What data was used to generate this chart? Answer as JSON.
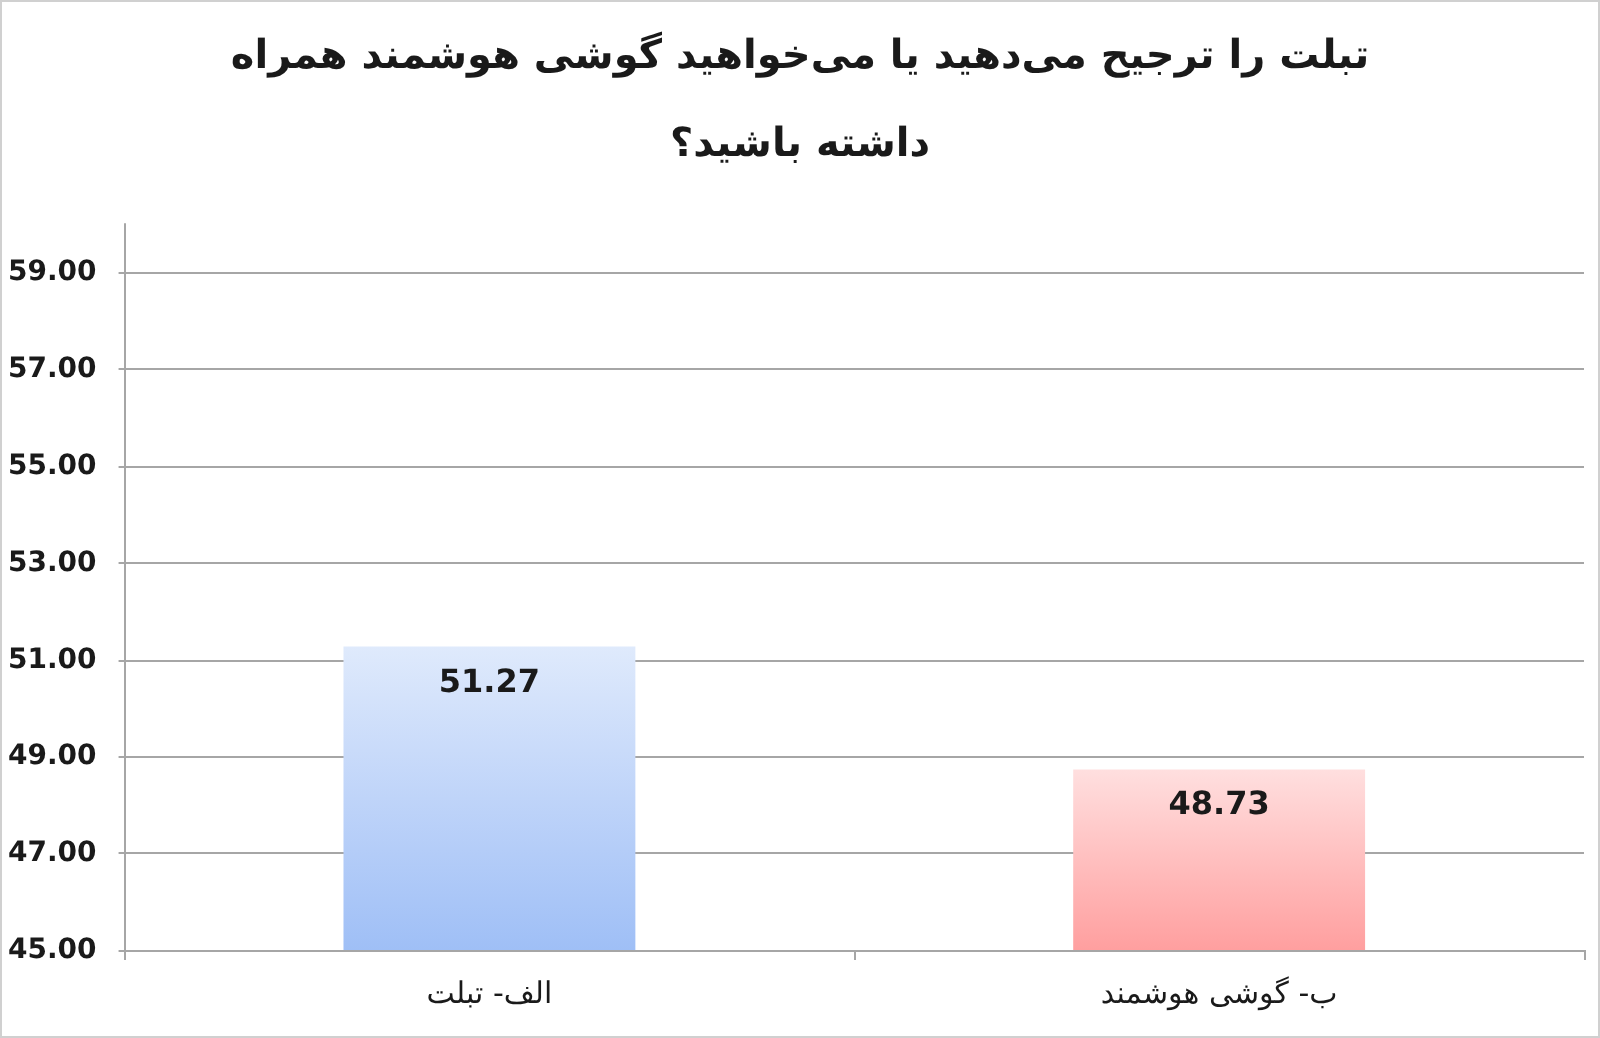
{
  "chart_data": {
    "type": "bar",
    "title": "تبلت را ترجیح می‌دهید یا می‌خواهید گوشی هوشمند همراه داشته باشید؟",
    "categories": [
      "الف- تبلت",
      "ب- گوشی هوشمند"
    ],
    "values": [
      51.27,
      48.73
    ],
    "colors": [
      "#bfd4f9",
      "#ffbfbf"
    ],
    "ylim": [
      45,
      60
    ],
    "yticks": [
      {
        "value": 45,
        "label": "45.00"
      },
      {
        "value": 47,
        "label": "47.00"
      },
      {
        "value": 49,
        "label": "49.00"
      },
      {
        "value": 51,
        "label": "51.00"
      },
      {
        "value": 53,
        "label": "53.00"
      },
      {
        "value": 55,
        "label": "55.00"
      },
      {
        "value": 57,
        "label": "57.00"
      },
      {
        "value": 59,
        "label": "59.00"
      }
    ],
    "grid": "y",
    "data_labels": true
  }
}
